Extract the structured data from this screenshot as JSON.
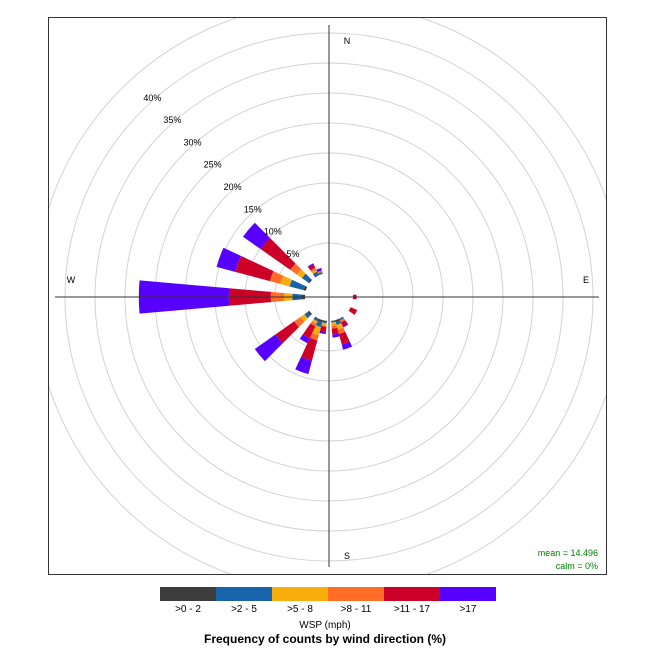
{
  "chart_data": {
    "type": "polar-stacked-bar",
    "title": "Frequency of counts by wind direction (%)",
    "legend_title": "WSP (mph)",
    "legend_placement": "bottom",
    "units": "%",
    "grid": true,
    "r_ticks": [
      5,
      10,
      15,
      20,
      25,
      30,
      35,
      40
    ],
    "r_tick_labels": [
      "5%",
      "10%",
      "15%",
      "20%",
      "25%",
      "30%",
      "35%",
      "40%"
    ],
    "r_max": 45,
    "compass_labels": [
      "N",
      "E",
      "S",
      "W"
    ],
    "bins": [
      {
        "label": ">0 - 2",
        "color": "#3d3d3d"
      },
      {
        "label": ">2 - 5",
        "color": "#1764ab"
      },
      {
        "label": ">5 - 8",
        "color": "#f7ad0b"
      },
      {
        "label": ">8 - 11",
        "color": "#ff6d27"
      },
      {
        "label": ">11 - 17",
        "color": "#cd0028"
      },
      {
        "label": ">17",
        "color": "#5800ff"
      }
    ],
    "sectors": [
      {
        "direction": 90,
        "values": [
          0,
          0,
          0,
          0,
          0.6,
          0
        ]
      },
      {
        "direction": 120,
        "values": [
          0,
          0,
          0,
          0,
          1.2,
          0
        ]
      },
      {
        "direction": 150,
        "values": [
          0,
          0.3,
          0,
          0.4,
          0.6,
          0.3
        ]
      },
      {
        "direction": 160,
        "values": [
          0.3,
          0.5,
          0.8,
          0.8,
          1.8,
          0.9
        ]
      },
      {
        "direction": 170,
        "values": [
          0,
          0.3,
          0.5,
          0.5,
          1.0,
          0.5
        ]
      },
      {
        "direction": 190,
        "values": [
          0.2,
          0.2,
          0.4,
          0.2,
          0.8,
          0.4
        ]
      },
      {
        "direction": 200,
        "values": [
          0.4,
          0.8,
          1.4,
          0.9,
          3.5,
          2.3
        ]
      },
      {
        "direction": 210,
        "values": [
          0.2,
          0.3,
          0.4,
          0.5,
          2.2,
          0.9
        ]
      },
      {
        "direction": 230,
        "values": [
          0.4,
          0.6,
          0.8,
          1.3,
          3.8,
          4.2
        ]
      },
      {
        "direction": 270,
        "values": [
          0.5,
          1.6,
          1.4,
          2.2,
          7.0,
          15.0
        ]
      },
      {
        "direction": 290,
        "values": [
          0.4,
          2.4,
          1.6,
          1.8,
          6.0,
          3.2
        ]
      },
      {
        "direction": 310,
        "values": [
          0.3,
          1.2,
          1.0,
          1.4,
          6.0,
          3.6
        ]
      },
      {
        "direction": 330,
        "values": [
          0.2,
          0.5,
          0.3,
          0.4,
          0.6,
          0.2
        ]
      },
      {
        "direction": 340,
        "values": [
          0,
          0.3,
          0,
          0.3,
          0,
          0.4
        ]
      }
    ],
    "stats": {
      "mean": "mean = 14.496",
      "calm": "calm = 0%"
    }
  }
}
